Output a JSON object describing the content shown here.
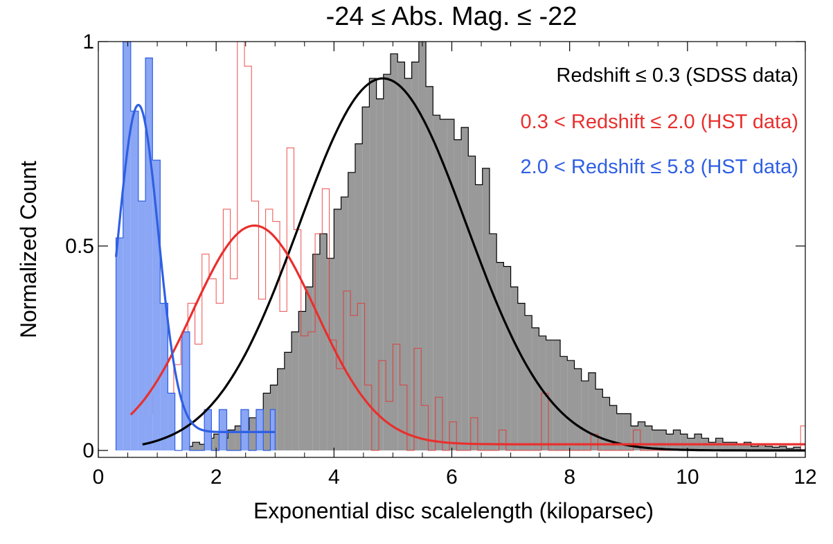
{
  "chart_data": {
    "type": "histogram",
    "title": "-24 ≤ Abs. Mag. ≤ -22",
    "xlabel": "Exponential disc scalelength (kiloparsec)",
    "ylabel": "Normalized Count",
    "xlim": [
      0,
      12
    ],
    "ylim": [
      0,
      1.0
    ],
    "x_ticks": [
      0,
      2,
      4,
      6,
      8,
      10,
      12
    ],
    "x_tick_labels": [
      "0",
      "2",
      "4",
      "6",
      "8",
      "10",
      "12"
    ],
    "y_ticks": [
      0,
      0.5,
      1
    ],
    "y_tick_labels": [
      "0",
      "0.5",
      "1"
    ],
    "minor_x_ticks": true,
    "grid": false,
    "legend_placement": "top-right",
    "series": [
      {
        "name": "Redshift ≤ 0.3 (SDSS data)",
        "color": "#000000",
        "fill": "#999999",
        "bins": [
          [
            1.48,
            1.6,
            0.01
          ],
          [
            1.6,
            1.72,
            0.02
          ],
          [
            1.72,
            1.84,
            0.015
          ],
          [
            1.84,
            1.96,
            0.03
          ],
          [
            1.96,
            2.08,
            0.04
          ],
          [
            2.08,
            2.2,
            0.03
          ],
          [
            2.2,
            2.32,
            0.05
          ],
          [
            2.32,
            2.44,
            0.06
          ],
          [
            2.44,
            2.56,
            0.05
          ],
          [
            2.56,
            2.68,
            0.08
          ],
          [
            2.68,
            2.8,
            0.1
          ],
          [
            2.8,
            2.92,
            0.14
          ],
          [
            2.92,
            3.04,
            0.16
          ],
          [
            3.04,
            3.16,
            0.2
          ],
          [
            3.16,
            3.28,
            0.24
          ],
          [
            3.28,
            3.4,
            0.29
          ],
          [
            3.4,
            3.52,
            0.34
          ],
          [
            3.52,
            3.64,
            0.4
          ],
          [
            3.64,
            3.76,
            0.48
          ],
          [
            3.76,
            3.88,
            0.53
          ],
          [
            3.88,
            4.0,
            0.47
          ],
          [
            4.0,
            4.12,
            0.59
          ],
          [
            4.12,
            4.24,
            0.62
          ],
          [
            4.24,
            4.36,
            0.68
          ],
          [
            4.36,
            4.48,
            0.75
          ],
          [
            4.48,
            4.6,
            0.84
          ],
          [
            4.6,
            4.72,
            0.91
          ],
          [
            4.72,
            4.84,
            0.86
          ],
          [
            4.84,
            4.96,
            0.92
          ],
          [
            4.96,
            5.08,
            0.97
          ],
          [
            5.08,
            5.2,
            0.95
          ],
          [
            5.2,
            5.32,
            0.91
          ],
          [
            5.32,
            5.44,
            0.95
          ],
          [
            5.44,
            5.56,
            1.0
          ],
          [
            5.56,
            5.68,
            0.89
          ],
          [
            5.68,
            5.8,
            0.82
          ],
          [
            5.8,
            5.92,
            0.81
          ],
          [
            5.92,
            6.04,
            0.81
          ],
          [
            6.04,
            6.16,
            0.76
          ],
          [
            6.16,
            6.28,
            0.79
          ],
          [
            6.28,
            6.4,
            0.72
          ],
          [
            6.4,
            6.52,
            0.65
          ],
          [
            6.52,
            6.64,
            0.69
          ],
          [
            6.64,
            6.76,
            0.53
          ],
          [
            6.76,
            6.88,
            0.46
          ],
          [
            6.88,
            7.0,
            0.45
          ],
          [
            7.0,
            7.12,
            0.4
          ],
          [
            7.12,
            7.24,
            0.36
          ],
          [
            7.24,
            7.36,
            0.33
          ],
          [
            7.36,
            7.48,
            0.3
          ],
          [
            7.48,
            7.6,
            0.28
          ],
          [
            7.6,
            7.72,
            0.27
          ],
          [
            7.72,
            7.84,
            0.27
          ],
          [
            7.84,
            7.96,
            0.23
          ],
          [
            7.96,
            8.08,
            0.22
          ],
          [
            8.08,
            8.2,
            0.2
          ],
          [
            8.2,
            8.32,
            0.17
          ],
          [
            8.32,
            8.44,
            0.19
          ],
          [
            8.44,
            8.56,
            0.15
          ],
          [
            8.56,
            8.68,
            0.13
          ],
          [
            8.68,
            8.8,
            0.11
          ],
          [
            8.8,
            8.92,
            0.09
          ],
          [
            8.92,
            9.04,
            0.09
          ],
          [
            9.04,
            9.16,
            0.06
          ],
          [
            9.16,
            9.28,
            0.07
          ],
          [
            9.28,
            9.4,
            0.06
          ],
          [
            9.4,
            9.52,
            0.05
          ],
          [
            9.52,
            9.64,
            0.05
          ],
          [
            9.64,
            9.76,
            0.04
          ],
          [
            9.76,
            9.88,
            0.05
          ],
          [
            9.88,
            10.0,
            0.04
          ],
          [
            10.0,
            10.12,
            0.03
          ],
          [
            10.12,
            10.24,
            0.04
          ],
          [
            10.24,
            10.36,
            0.03
          ],
          [
            10.36,
            10.48,
            0.02
          ],
          [
            10.48,
            10.6,
            0.03
          ],
          [
            10.6,
            10.72,
            0.02
          ],
          [
            10.72,
            10.84,
            0.02
          ],
          [
            10.84,
            10.96,
            0.015
          ],
          [
            10.96,
            11.08,
            0.02
          ],
          [
            11.08,
            11.2,
            0.01
          ],
          [
            11.2,
            11.32,
            0.015
          ],
          [
            11.32,
            11.44,
            0.01
          ],
          [
            11.44,
            11.56,
            0.008
          ],
          [
            11.56,
            11.68,
            0.01
          ],
          [
            11.68,
            11.8,
            0.005
          ],
          [
            11.8,
            11.92,
            0.008
          ]
        ],
        "fit_curve": {
          "type": "gaussian",
          "amplitude": 0.91,
          "mean": 4.83,
          "sigma": 1.42,
          "x_range": [
            0.75,
            12.0
          ]
        }
      },
      {
        "name": "0.3 < Redshift ≤ 2.0 (HST data)",
        "color": "#e8302e",
        "fill": "none",
        "bins": [
          [
            0.6,
            0.7,
            0.12
          ],
          [
            0.7,
            0.8,
            0.08
          ],
          [
            0.8,
            0.92,
            0.14
          ],
          [
            0.92,
            1.04,
            0.09
          ],
          [
            1.04,
            1.16,
            0.06
          ],
          [
            1.16,
            1.28,
            0.14
          ],
          [
            1.28,
            1.4,
            0.21
          ],
          [
            1.4,
            1.52,
            0.27
          ],
          [
            1.52,
            1.64,
            0.36
          ],
          [
            1.64,
            1.76,
            0.26
          ],
          [
            1.76,
            1.88,
            0.48
          ],
          [
            1.88,
            2.0,
            0.42
          ],
          [
            2.0,
            2.12,
            0.36
          ],
          [
            2.12,
            2.24,
            0.59
          ],
          [
            2.24,
            2.36,
            0.42
          ],
          [
            2.36,
            2.48,
            1.0
          ],
          [
            2.48,
            2.6,
            0.94
          ],
          [
            2.6,
            2.72,
            0.61
          ],
          [
            2.72,
            2.84,
            0.37
          ],
          [
            2.84,
            2.96,
            0.59
          ],
          [
            2.96,
            3.08,
            0.56
          ],
          [
            3.08,
            3.2,
            0.34
          ],
          [
            3.2,
            3.32,
            0.74
          ],
          [
            3.32,
            3.44,
            0.54
          ],
          [
            3.44,
            3.56,
            0.28
          ],
          [
            3.56,
            3.68,
            0.29
          ],
          [
            3.68,
            3.8,
            0.53
          ],
          [
            3.8,
            3.92,
            0.64
          ],
          [
            3.92,
            4.04,
            0.27
          ],
          [
            4.04,
            4.16,
            0.2
          ],
          [
            4.16,
            4.28,
            0.39
          ],
          [
            4.28,
            4.4,
            0.33
          ],
          [
            4.4,
            4.52,
            0.36
          ],
          [
            4.52,
            4.64,
            0.16
          ],
          [
            4.64,
            4.76,
            0.0
          ],
          [
            4.76,
            4.88,
            0.22
          ],
          [
            4.88,
            5.0,
            0.12
          ],
          [
            5.0,
            5.12,
            0.26
          ],
          [
            5.12,
            5.24,
            0.16
          ],
          [
            5.24,
            5.36,
            0.0
          ],
          [
            5.36,
            5.48,
            0.25
          ],
          [
            5.48,
            5.6,
            0.11
          ],
          [
            5.6,
            5.72,
            0.0
          ],
          [
            5.72,
            5.84,
            0.13
          ],
          [
            5.84,
            5.96,
            0.0
          ],
          [
            5.96,
            6.08,
            0.07
          ],
          [
            6.08,
            6.2,
            0.0
          ],
          [
            6.2,
            6.32,
            0.0
          ],
          [
            6.32,
            6.44,
            0.08
          ],
          [
            6.44,
            6.56,
            0.0
          ],
          [
            6.56,
            6.68,
            0.0
          ],
          [
            6.68,
            6.8,
            0.0
          ],
          [
            6.8,
            6.92,
            0.05
          ],
          [
            6.92,
            7.04,
            0.0
          ],
          [
            7.04,
            7.16,
            0.0
          ],
          [
            7.16,
            7.28,
            0.0
          ],
          [
            7.28,
            7.4,
            0.0
          ],
          [
            7.4,
            7.52,
            0.0
          ],
          [
            7.52,
            7.64,
            0.14
          ],
          [
            7.64,
            7.76,
            0.0
          ],
          [
            7.76,
            7.88,
            0.0
          ],
          [
            7.88,
            8.0,
            0.0
          ],
          [
            8.0,
            8.12,
            0.0
          ],
          [
            8.12,
            8.24,
            0.0
          ],
          [
            8.24,
            8.36,
            0.0
          ],
          [
            8.36,
            8.48,
            0.04
          ],
          [
            8.48,
            8.6,
            0.0
          ],
          [
            8.6,
            8.72,
            0.0
          ],
          [
            8.72,
            8.84,
            0.0
          ],
          [
            8.84,
            8.96,
            0.0
          ],
          [
            8.96,
            9.08,
            0.0
          ],
          [
            9.08,
            9.2,
            0.05
          ],
          [
            9.2,
            11.92,
            0.0
          ],
          [
            11.92,
            12.0,
            0.06
          ]
        ],
        "fit_curve": {
          "type": "gaussian",
          "amplitude": 0.535,
          "mean": 2.65,
          "sigma": 1.05,
          "offset": 0.015,
          "x_range": [
            0.55,
            12.0
          ]
        }
      },
      {
        "name": "2.0 < Redshift ≤ 5.8 (HST data)",
        "color": "#2f5fe3",
        "fill": "#8aa6f4",
        "bins": [
          [
            0.3,
            0.42,
            0.52
          ],
          [
            0.42,
            0.55,
            1.0
          ],
          [
            0.55,
            0.68,
            0.83
          ],
          [
            0.68,
            0.8,
            0.61
          ],
          [
            0.8,
            0.92,
            0.96
          ],
          [
            0.92,
            1.05,
            0.71
          ],
          [
            1.05,
            1.18,
            0.36
          ],
          [
            1.18,
            1.3,
            0.14
          ],
          [
            1.3,
            1.42,
            0.0
          ],
          [
            1.42,
            1.55,
            0.29
          ],
          [
            1.55,
            1.68,
            0.0
          ],
          [
            1.68,
            1.8,
            0.0
          ],
          [
            1.8,
            1.92,
            0.1
          ],
          [
            1.92,
            2.05,
            0.0
          ],
          [
            2.05,
            2.18,
            0.1
          ],
          [
            2.18,
            2.3,
            0.0
          ],
          [
            2.3,
            2.42,
            0.0
          ],
          [
            2.42,
            2.55,
            0.1
          ],
          [
            2.55,
            2.68,
            0.0
          ],
          [
            2.68,
            2.8,
            0.1
          ],
          [
            2.8,
            2.92,
            0.0
          ],
          [
            2.92,
            3.0,
            0.1
          ]
        ],
        "fit_curve": {
          "type": "gaussian",
          "amplitude": 0.8,
          "mean": 0.68,
          "sigma": 0.34,
          "offset": 0.045,
          "x_range": [
            0.3,
            3.0
          ]
        }
      }
    ]
  }
}
